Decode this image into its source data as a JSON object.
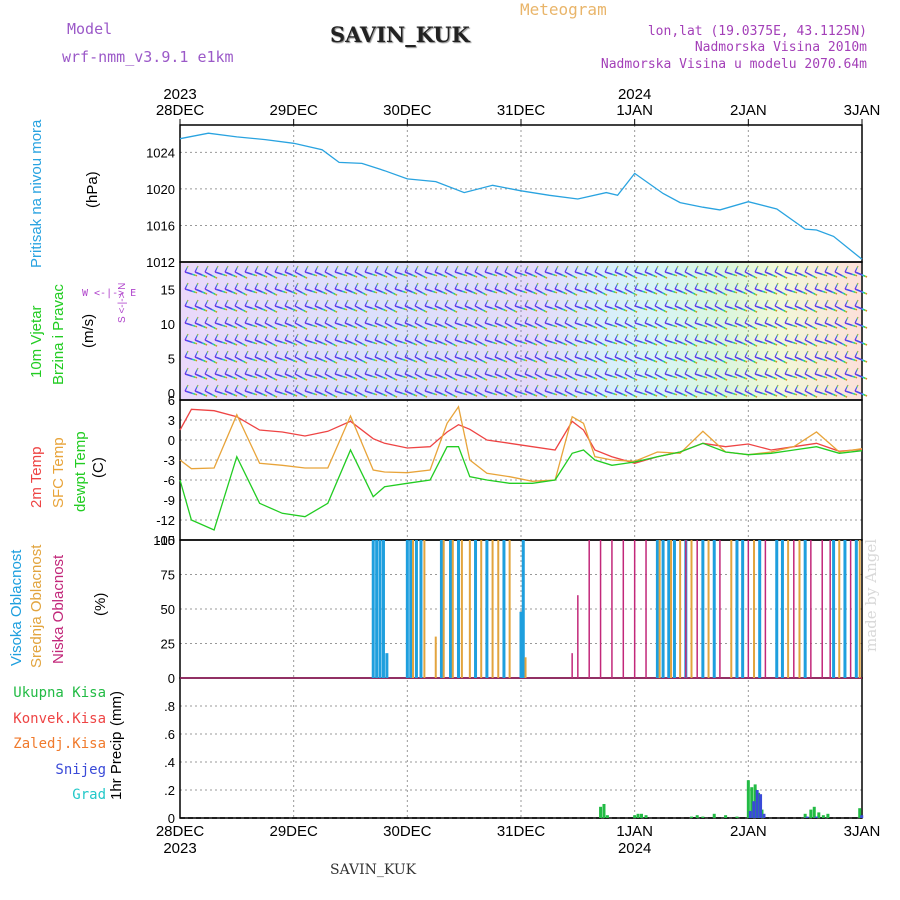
{
  "header": {
    "model_label": "Model",
    "model_name": "wrf-nmm_v3.9.1 e1km",
    "station": "SAVIN_KUK",
    "product": "Meteogram",
    "coords": "lon,lat (19.0375E, 43.1125N)",
    "elevation": "Nadmorska Visina 2010m",
    "model_elevation": "Nadmorska Visina u modelu 2070.64m"
  },
  "footer": {
    "station": "SAVIN_KUK",
    "watermark": "made by Angel"
  },
  "time_axis": {
    "top_years": [
      {
        "label": "2023",
        "day": 0
      },
      {
        "label": "2024",
        "day": 4
      }
    ],
    "bottom_years": [
      {
        "label": "2023",
        "day": 0
      },
      {
        "label": "2024",
        "day": 4
      }
    ],
    "ticks": [
      "28DEC",
      "29DEC",
      "30DEC",
      "31DEC",
      "1JAN",
      "2JAN",
      "3JAN"
    ]
  },
  "panel_labels": {
    "pressure": [
      "Pritisak na nivou mora",
      "(hPa)"
    ],
    "wind": [
      "10m Vjetar",
      "Brzina i Pravac",
      "(m/s)"
    ],
    "wind_dir": "W <-|-> E",
    "wind_dir2": "S <-|-> N",
    "temp": [
      "2m Temp",
      "SFC Temp",
      "dewpt Temp",
      "(C)"
    ],
    "cloud": [
      "Visoka Oblacnost",
      "Srednja Oblacnost",
      "Niska Oblacnost",
      "(%)"
    ],
    "precip": [
      "1hr Precip",
      "(mm)"
    ],
    "precip_legend": [
      "Ukupna Kisa",
      "Konvek.Kisa",
      "Zaledj.Kisa",
      "Snijeg",
      "Grad"
    ]
  },
  "colors": {
    "pressure": "#29a3e0",
    "temp2m": "#ee4444",
    "sfc": "#e8a43a",
    "dewpt": "#22cc22",
    "cloud_high": "#1e9fde",
    "cloud_mid": "#e2a43e",
    "cloud_low": "#c2287a",
    "rain_total": "#22bb44",
    "conv": "#ee4444",
    "freezing": "#f07a2c",
    "snow": "#3a4ad8",
    "hail": "#22c8c8"
  },
  "chart_data": [
    {
      "type": "line",
      "name": "pressure",
      "ylim": [
        1012,
        1027
      ],
      "yticks": [
        1012,
        1016,
        1020,
        1024
      ],
      "x": [
        0,
        0.25,
        0.5,
        0.75,
        1.0,
        1.25,
        1.4,
        1.6,
        1.8,
        2.0,
        2.25,
        2.5,
        2.75,
        3.0,
        3.25,
        3.5,
        3.75,
        3.85,
        4.0,
        4.25,
        4.4,
        4.6,
        4.75,
        5.0,
        5.25,
        5.5,
        5.6,
        5.75,
        6.0
      ],
      "values": [
        1025.5,
        1026.1,
        1025.7,
        1025.4,
        1025.0,
        1024.3,
        1022.9,
        1022.8,
        1022.0,
        1021.1,
        1020.8,
        1019.6,
        1020.4,
        1019.8,
        1019.3,
        1018.9,
        1019.6,
        1019.3,
        1021.7,
        1019.5,
        1018.5,
        1018.0,
        1017.7,
        1018.6,
        1017.8,
        1015.6,
        1015.5,
        1014.8,
        1012.3
      ]
    },
    {
      "type": "line",
      "name": "temperature",
      "ylim": [
        -15,
        6
      ],
      "yticks": [
        -15,
        -12,
        -9,
        -6,
        -3,
        0,
        3,
        6
      ],
      "x": [
        0,
        0.1,
        0.3,
        0.5,
        0.7,
        0.9,
        1.1,
        1.3,
        1.5,
        1.7,
        1.8,
        2.0,
        2.2,
        2.35,
        2.45,
        2.55,
        2.7,
        2.9,
        3.1,
        3.3,
        3.45,
        3.55,
        3.65,
        3.8,
        4.0,
        4.2,
        4.4,
        4.6,
        4.8,
        5.0,
        5.2,
        5.4,
        5.6,
        5.8,
        6.0
      ],
      "series": [
        {
          "name": "2m Temp",
          "values": [
            1.5,
            4.6,
            4.4,
            3.5,
            1.5,
            1.2,
            0.6,
            1.3,
            2.8,
            0.2,
            -0.5,
            -1.2,
            -1.0,
            1.2,
            2.3,
            1.6,
            0.0,
            -0.5,
            -1.0,
            -1.5,
            2.8,
            1.5,
            -1.5,
            -2.5,
            -3.5,
            -2.5,
            -1.8,
            -0.5,
            -1.0,
            -0.6,
            -1.5,
            -1.0,
            -0.5,
            -1.7,
            -1.4
          ]
        },
        {
          "name": "SFC Temp",
          "values": [
            -3.0,
            -4.3,
            -4.2,
            3.8,
            -3.5,
            -3.8,
            -4.2,
            -4.2,
            3.6,
            -4.5,
            -4.8,
            -4.9,
            -4.5,
            2.5,
            5.0,
            -3.0,
            -5.0,
            -5.5,
            -6.2,
            -6.0,
            3.5,
            2.5,
            -2.5,
            -3.0,
            -3.2,
            -1.8,
            -2.0,
            1.3,
            -1.8,
            -2.2,
            -1.8,
            -1.0,
            1.2,
            -1.8,
            -1.3
          ]
        },
        {
          "name": "dewpt Temp",
          "values": [
            -6.0,
            -12.0,
            -13.5,
            -2.5,
            -9.5,
            -11.0,
            -11.5,
            -9.5,
            -1.5,
            -8.5,
            -7.0,
            -6.5,
            -6.0,
            -1.0,
            -1.0,
            -5.5,
            -6.0,
            -6.5,
            -6.5,
            -6.0,
            -2.0,
            -1.5,
            -3.0,
            -3.8,
            -3.3,
            -2.5,
            -1.8,
            -0.5,
            -1.8,
            -2.2,
            -2.0,
            -1.5,
            -1.0,
            -2.0,
            -1.6
          ]
        }
      ]
    },
    {
      "type": "bar",
      "name": "cloud_cover",
      "ylim": [
        0,
        100
      ],
      "yticks": [
        0,
        25,
        50,
        75,
        100
      ],
      "series": [
        {
          "name": "Visoka Oblacnost",
          "x": [
            1.7,
            1.73,
            1.76,
            1.79,
            1.82,
            2.0,
            2.03,
            2.08,
            2.12,
            2.3,
            2.38,
            2.45,
            2.6,
            2.7,
            2.85,
            3.0,
            3.02,
            4.2,
            4.25,
            4.3,
            4.35,
            4.45,
            4.6,
            4.7,
            4.9,
            4.95,
            5.1,
            5.25,
            5.3,
            5.5,
            5.75,
            5.85,
            5.95
          ],
          "values": [
            100,
            100,
            100,
            100,
            18,
            100,
            100,
            100,
            100,
            100,
            100,
            100,
            100,
            100,
            100,
            48,
            100,
            100,
            100,
            100,
            100,
            100,
            100,
            100,
            100,
            100,
            100,
            100,
            100,
            100,
            100,
            100,
            100
          ]
        },
        {
          "name": "Srednja Oblacnost",
          "x": [
            2.05,
            2.15,
            2.25,
            2.32,
            2.4,
            2.48,
            2.55,
            2.65,
            2.75,
            2.8,
            2.9,
            3.04,
            4.22,
            4.32,
            4.4,
            4.5,
            4.65,
            4.85,
            5.05,
            5.35,
            5.45,
            5.8,
            5.98
          ],
          "values": [
            100,
            100,
            30,
            100,
            100,
            100,
            100,
            100,
            100,
            100,
            100,
            15,
            100,
            100,
            100,
            100,
            100,
            100,
            100,
            100,
            100,
            100,
            100
          ]
        },
        {
          "name": "Niska Oblacnost",
          "x": [
            3.45,
            3.5,
            3.6,
            3.7,
            3.8,
            3.9,
            4.0,
            4.1,
            4.45,
            4.55,
            4.75,
            5.0,
            5.15,
            5.4,
            5.55,
            5.65,
            5.72,
            5.9
          ],
          "values": [
            18,
            60,
            100,
            100,
            100,
            100,
            100,
            100,
            100,
            100,
            100,
            100,
            100,
            100,
            100,
            100,
            100,
            100
          ]
        }
      ]
    },
    {
      "type": "bar",
      "name": "precipitation_1hr",
      "ylim": [
        0,
        1
      ],
      "yticks": [
        0,
        0.2,
        0.4,
        0.6,
        0.8
      ],
      "x": [
        3.7,
        3.73,
        3.76,
        4.0,
        4.03,
        4.06,
        4.1,
        4.5,
        4.55,
        4.6,
        4.7,
        4.8,
        4.9,
        5.0,
        5.03,
        5.06,
        5.09,
        5.12,
        5.5,
        5.55,
        5.58,
        5.62,
        5.66,
        5.7,
        5.98
      ],
      "series": [
        {
          "name": "Ukupna Kisa",
          "values": [
            0.08,
            0.1,
            0.02,
            0.02,
            0.03,
            0.03,
            0.02,
            0.01,
            0.02,
            0.01,
            0.03,
            0.02,
            0.01,
            0.27,
            0.22,
            0.24,
            0.18,
            0.06,
            0.03,
            0.06,
            0.08,
            0.04,
            0.02,
            0.03,
            0.07
          ]
        },
        {
          "name": "Snijeg",
          "values": [
            0,
            0,
            0,
            0,
            0,
            0,
            0,
            0,
            0,
            0,
            0,
            0,
            0,
            0.05,
            0.12,
            0.2,
            0.17,
            0.03,
            0.01,
            0,
            0.01,
            0,
            0,
            0,
            0.02
          ]
        }
      ]
    }
  ]
}
